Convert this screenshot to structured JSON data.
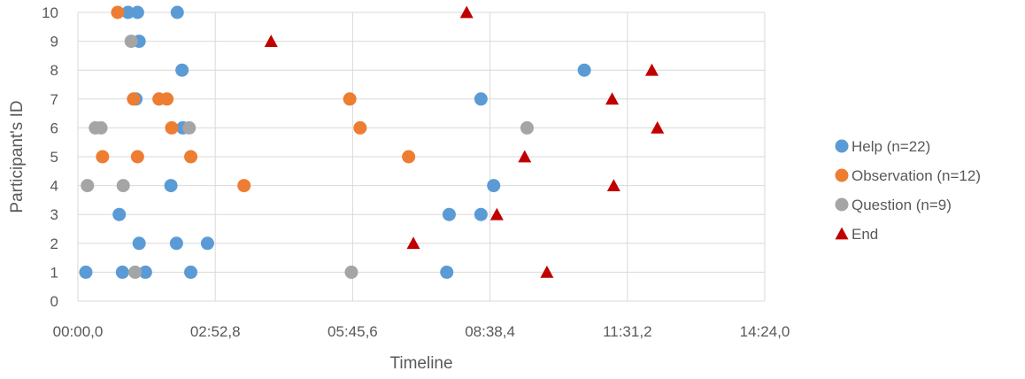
{
  "chart_data": {
    "type": "scatter",
    "title": "",
    "xlabel": "Timeline",
    "ylabel": "Participant's ID",
    "xlim_seconds": [
      0,
      864
    ],
    "ylim": [
      0,
      10
    ],
    "x_ticks": [
      {
        "value": 0,
        "label": "00:00,0"
      },
      {
        "value": 172.8,
        "label": "02:52,8"
      },
      {
        "value": 345.6,
        "label": "05:45,6"
      },
      {
        "value": 518.4,
        "label": "08:38,4"
      },
      {
        "value": 691.2,
        "label": "11:31,2"
      },
      {
        "value": 864,
        "label": "14:24,0"
      }
    ],
    "y_ticks": [
      0,
      1,
      2,
      3,
      4,
      5,
      6,
      7,
      8,
      9,
      10
    ],
    "grid": true,
    "legend_position": "right",
    "series": [
      {
        "name": "Help (n=22)",
        "marker": "circle",
        "color": "#5B9BD5",
        "points": [
          {
            "x": 63,
            "y": 10
          },
          {
            "x": 75,
            "y": 10
          },
          {
            "x": 125,
            "y": 10
          },
          {
            "x": 77,
            "y": 9
          },
          {
            "x": 131,
            "y": 8
          },
          {
            "x": 637,
            "y": 8
          },
          {
            "x": 73,
            "y": 7
          },
          {
            "x": 507,
            "y": 7
          },
          {
            "x": 132,
            "y": 6
          },
          {
            "x": 117,
            "y": 4
          },
          {
            "x": 523,
            "y": 4
          },
          {
            "x": 52,
            "y": 3
          },
          {
            "x": 467,
            "y": 3
          },
          {
            "x": 507,
            "y": 3
          },
          {
            "x": 77,
            "y": 2
          },
          {
            "x": 124,
            "y": 2
          },
          {
            "x": 163,
            "y": 2
          },
          {
            "x": 10,
            "y": 1
          },
          {
            "x": 56,
            "y": 1
          },
          {
            "x": 85,
            "y": 1
          },
          {
            "x": 142,
            "y": 1
          },
          {
            "x": 464,
            "y": 1
          }
        ]
      },
      {
        "name": "Observation (n=12)",
        "marker": "circle",
        "color": "#ED7D31",
        "points": [
          {
            "x": 50,
            "y": 10
          },
          {
            "x": 70,
            "y": 7
          },
          {
            "x": 102,
            "y": 7
          },
          {
            "x": 112,
            "y": 7
          },
          {
            "x": 342,
            "y": 7
          },
          {
            "x": 118,
            "y": 6
          },
          {
            "x": 355,
            "y": 6
          },
          {
            "x": 31,
            "y": 5
          },
          {
            "x": 75,
            "y": 5
          },
          {
            "x": 142,
            "y": 5
          },
          {
            "x": 416,
            "y": 5
          },
          {
            "x": 209,
            "y": 4
          }
        ]
      },
      {
        "name": "Question (n=9)",
        "marker": "circle",
        "color": "#A5A5A5",
        "points": [
          {
            "x": 67,
            "y": 9
          },
          {
            "x": 22,
            "y": 6
          },
          {
            "x": 29,
            "y": 6
          },
          {
            "x": 140,
            "y": 6
          },
          {
            "x": 565,
            "y": 6
          },
          {
            "x": 12,
            "y": 4
          },
          {
            "x": 57,
            "y": 4
          },
          {
            "x": 72,
            "y": 1
          },
          {
            "x": 344,
            "y": 1
          }
        ]
      },
      {
        "name": "End",
        "marker": "triangle",
        "color": "#C00000",
        "points": [
          {
            "x": 489,
            "y": 10
          },
          {
            "x": 243,
            "y": 9
          },
          {
            "x": 722,
            "y": 8
          },
          {
            "x": 672,
            "y": 7
          },
          {
            "x": 729,
            "y": 6
          },
          {
            "x": 562,
            "y": 5
          },
          {
            "x": 674,
            "y": 4
          },
          {
            "x": 527,
            "y": 3
          },
          {
            "x": 422,
            "y": 2
          },
          {
            "x": 590,
            "y": 1
          }
        ]
      }
    ]
  }
}
